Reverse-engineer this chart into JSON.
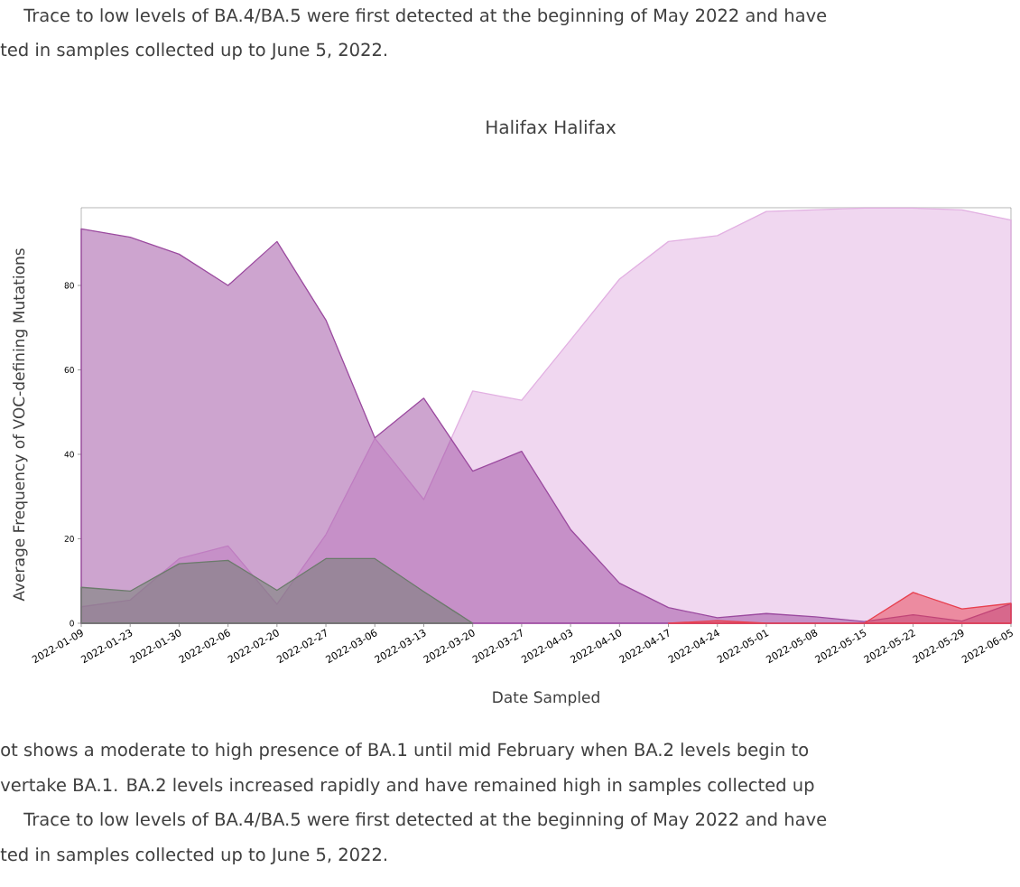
{
  "chart_data": {
    "type": "area",
    "title": "Halifax Halifax",
    "xlabel": "Date Sampled",
    "ylabel": "Average Frequency of VOC-defining Mutations",
    "categories": [
      "2022-01-09",
      "2022-01-23",
      "2022-01-30",
      "2022-02-06",
      "2022-02-20",
      "2022-02-27",
      "2022-03-06",
      "2022-03-13",
      "2022-03-20",
      "2022-03-27",
      "2022-04-03",
      "2022-04-10",
      "2022-04-17",
      "2022-04-24",
      "2022-05-01",
      "2022-05-08",
      "2022-05-15",
      "2022-05-22",
      "2022-05-29",
      "2022-06-05"
    ],
    "series": [
      {
        "color": "#e2b0e2",
        "values": [
          3.9,
          5.5,
          15.3,
          18.3,
          4.5,
          21.0,
          43.8,
          29.3,
          55.0,
          52.8,
          67.1,
          81.5,
          90.4,
          91.8,
          97.5,
          97.9,
          98.3,
          98.3,
          97.9,
          95.5
        ]
      },
      {
        "color": "#9b4a9f",
        "values": [
          93.4,
          91.4,
          87.4,
          80.0,
          90.4,
          71.8,
          43.9,
          53.3,
          36.0,
          40.7,
          22.2,
          9.5,
          3.7,
          1.3,
          2.3,
          1.5,
          0.4,
          2.0,
          0.5,
          4.6
        ]
      },
      {
        "color": "#6b7b6b",
        "values": [
          8.5,
          7.6,
          14.1,
          14.9,
          7.8,
          15.3,
          15.3,
          7.5,
          0,
          null,
          null,
          null,
          null,
          null,
          null,
          null,
          null,
          null,
          null,
          null
        ]
      },
      {
        "color": "#e8404f",
        "values": [
          null,
          null,
          null,
          null,
          null,
          null,
          null,
          null,
          null,
          null,
          null,
          null,
          0,
          0.6,
          0,
          0,
          0,
          7.3,
          3.4,
          4.7
        ]
      }
    ],
    "ylim": [
      0,
      98.4
    ],
    "yticks": [
      0,
      20,
      40,
      60,
      80
    ],
    "annotations": [
      "Trace to low levels of BA.4/BA.5 were first detected at the beginning of May 2022 and have",
      "ted in samples collected up to June 5, 2022.",
      "ot shows a moderate to high presence of BA.1 until mid February when BA.2 levels begin to",
      "vertake BA.1. BA.2 levels increased rapidly and have remained high in samples collected up",
      "Trace to low levels of BA.4/BA.5 were first detected at the beginning of May 2022 and have",
      "ted in samples collected up to June 5, 2022."
    ]
  }
}
